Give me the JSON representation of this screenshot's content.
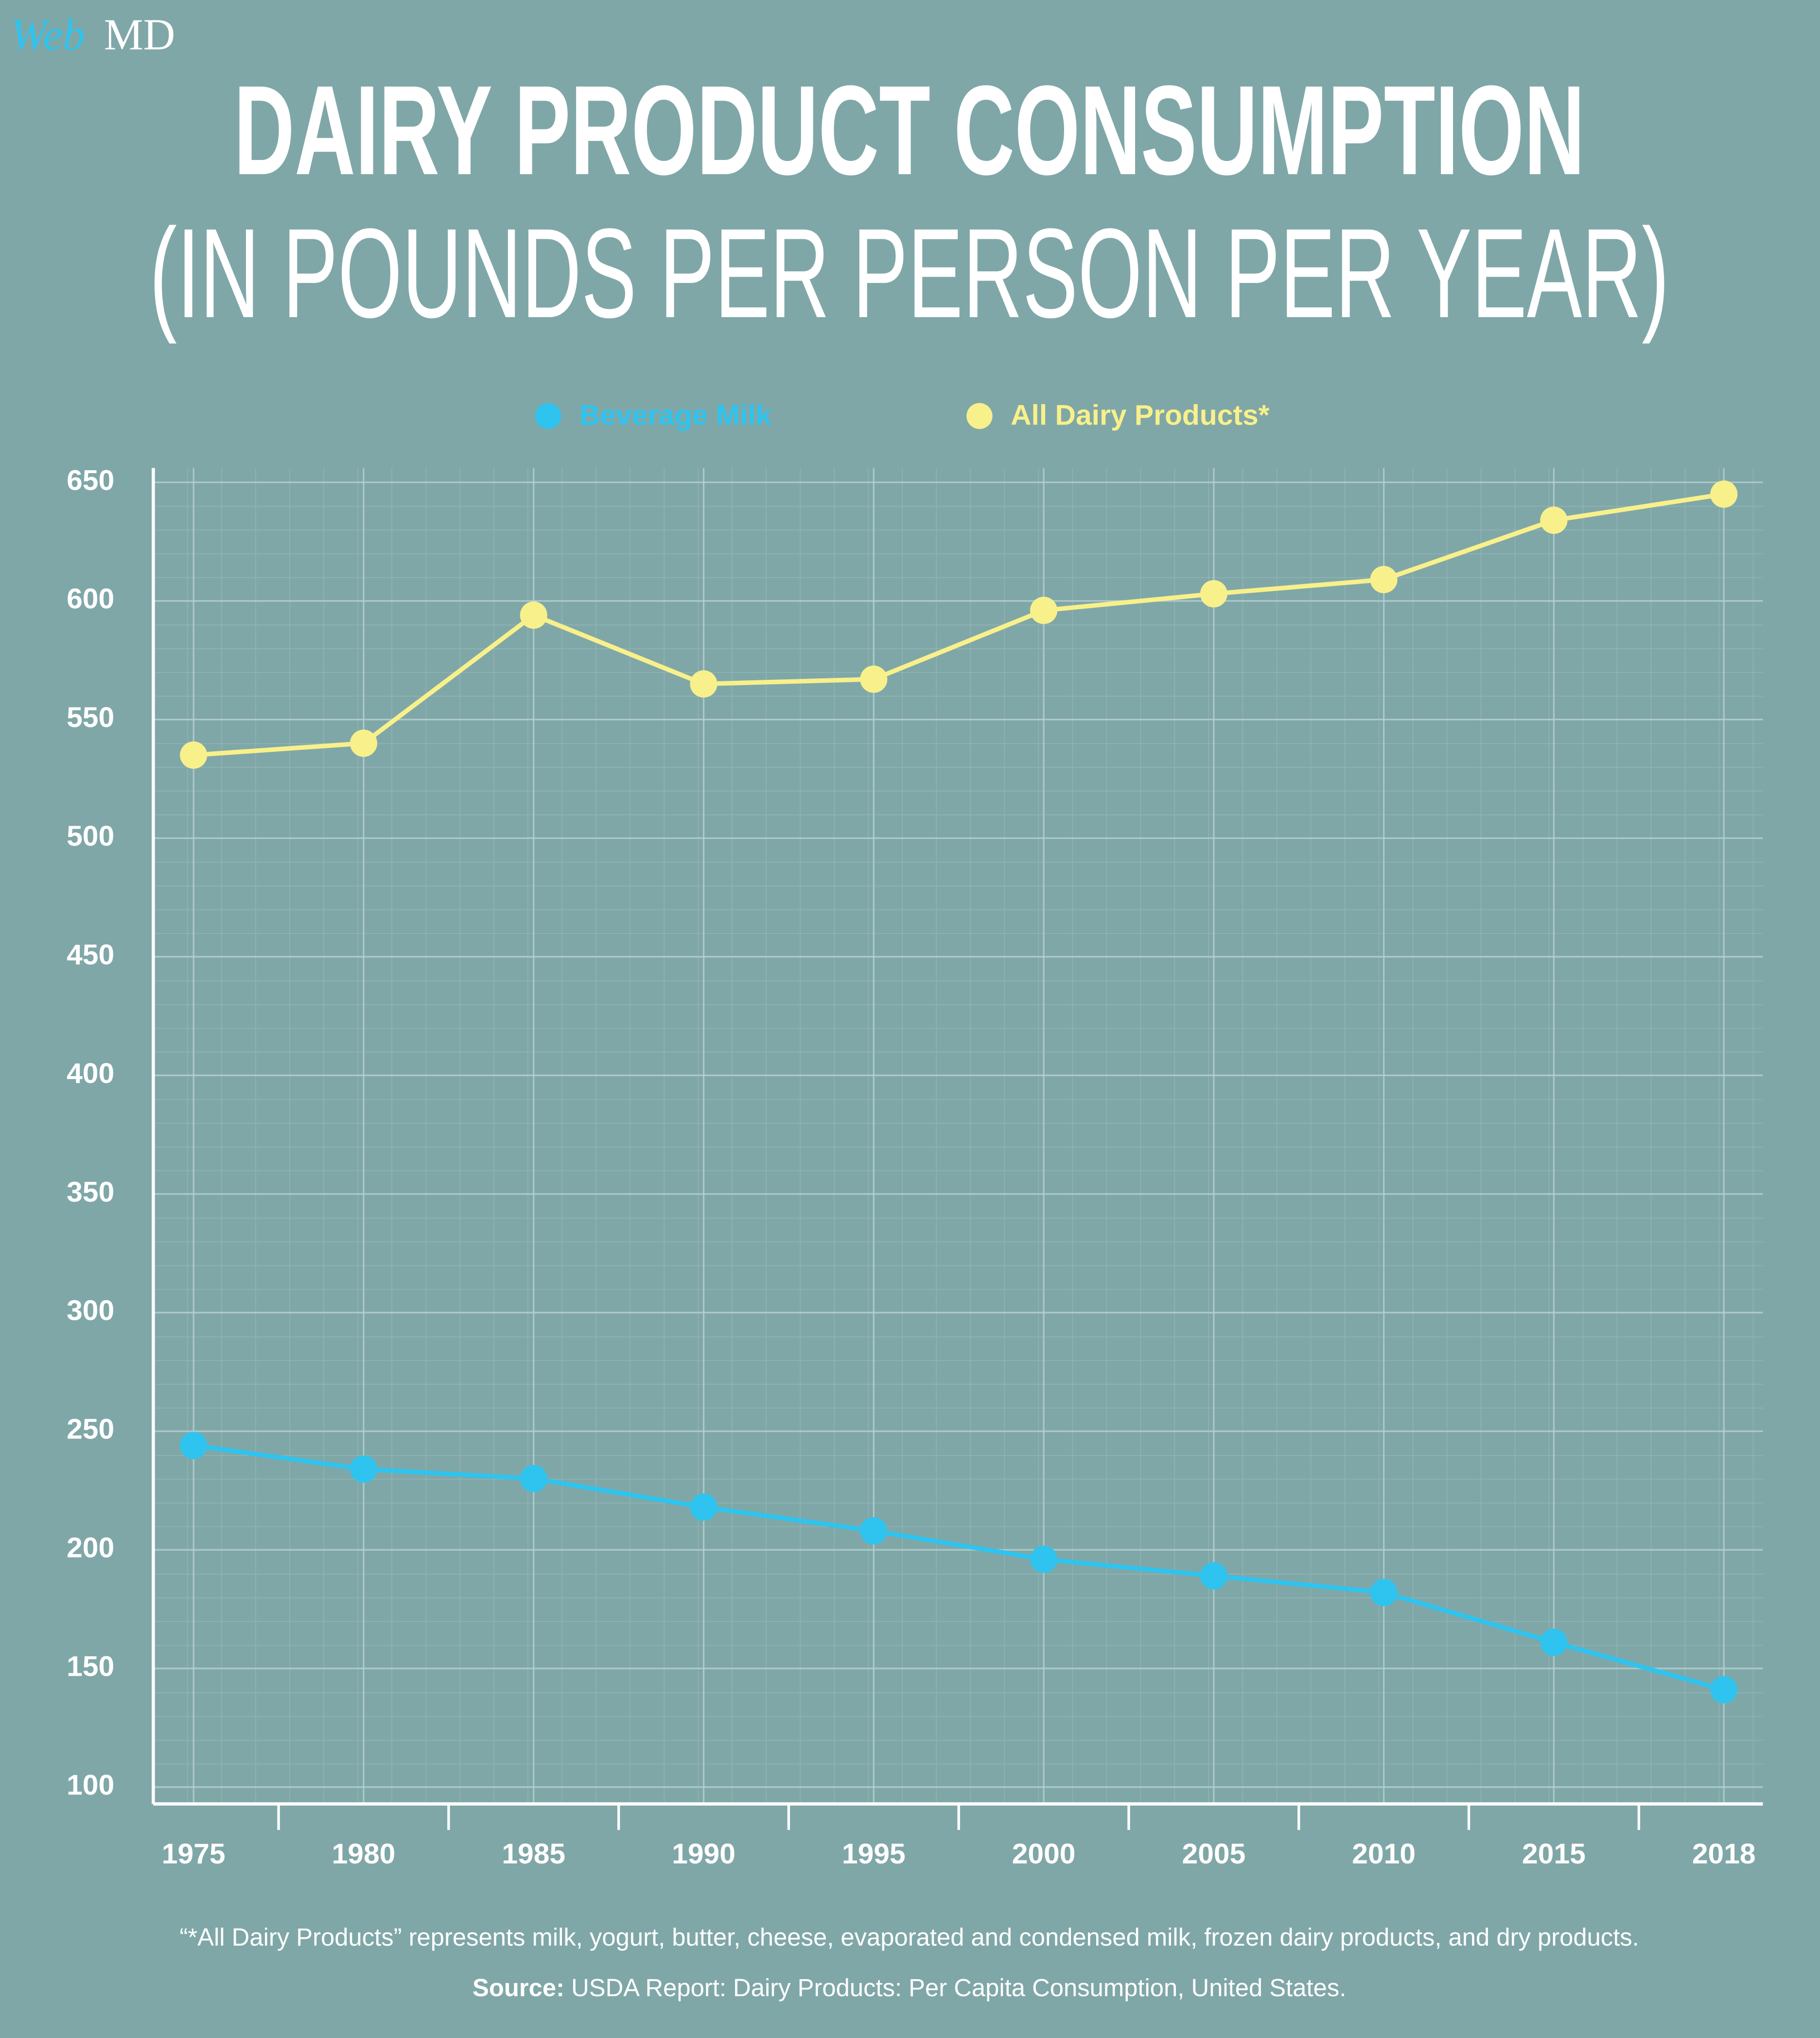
{
  "logo": {
    "web": "Web",
    "md": "MD"
  },
  "chart_data": {
    "type": "line",
    "title": "DAIRY PRODUCT CONSUMPTION",
    "subtitle": "(IN POUNDS PER PERSON PER YEAR)",
    "categories": [
      "1975",
      "1980",
      "1985",
      "1990",
      "1995",
      "2000",
      "2005",
      "2010",
      "2015",
      "2018"
    ],
    "series": [
      {
        "name": "Beverage Milk",
        "color": "#2ec4ef",
        "values": [
          244,
          234,
          230,
          218,
          208,
          196,
          189,
          182,
          161,
          141
        ]
      },
      {
        "name": "All Dairy Products*",
        "color": "#f8f08a",
        "values": [
          535,
          540,
          594,
          565,
          567,
          596,
          603,
          609,
          634,
          645
        ]
      }
    ],
    "ylim": [
      100,
      650
    ],
    "yticks": [
      100,
      150,
      200,
      250,
      300,
      350,
      400,
      450,
      500,
      550,
      600,
      650
    ],
    "grid": true,
    "legend": "top",
    "footnote": "“*All Dairy Products” represents milk, yogurt, butter, cheese, evaporated and condensed milk, frozen dairy products, and dry products.",
    "source_label": "Source:",
    "source_text": "USDA Report: Dairy Products: Per Capita Consumption, United States."
  }
}
